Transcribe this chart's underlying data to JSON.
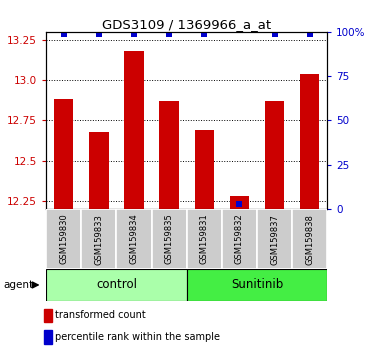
{
  "title": "GDS3109 / 1369966_a_at",
  "samples": [
    "GSM159830",
    "GSM159833",
    "GSM159834",
    "GSM159835",
    "GSM159831",
    "GSM159832",
    "GSM159837",
    "GSM159838"
  ],
  "bar_values": [
    12.88,
    12.68,
    13.18,
    12.87,
    12.69,
    12.28,
    12.87,
    13.04
  ],
  "percentile_values": [
    99,
    99,
    99,
    99,
    99,
    3,
    99,
    99
  ],
  "groups": [
    {
      "label": "control",
      "indices": [
        0,
        1,
        2,
        3
      ],
      "color": "#aaffaa"
    },
    {
      "label": "Sunitinib",
      "indices": [
        4,
        5,
        6,
        7
      ],
      "color": "#44ee44"
    }
  ],
  "ylim_left": [
    12.2,
    13.3
  ],
  "ylim_right": [
    0,
    100
  ],
  "yticks_left": [
    12.25,
    12.5,
    12.75,
    13.0,
    13.25
  ],
  "yticks_right": [
    0,
    25,
    50,
    75,
    100
  ],
  "bar_color": "#cc0000",
  "dot_color": "#0000cc",
  "agent_label": "agent",
  "legend_bar_label": "transformed count",
  "legend_dot_label": "percentile rank within the sample"
}
